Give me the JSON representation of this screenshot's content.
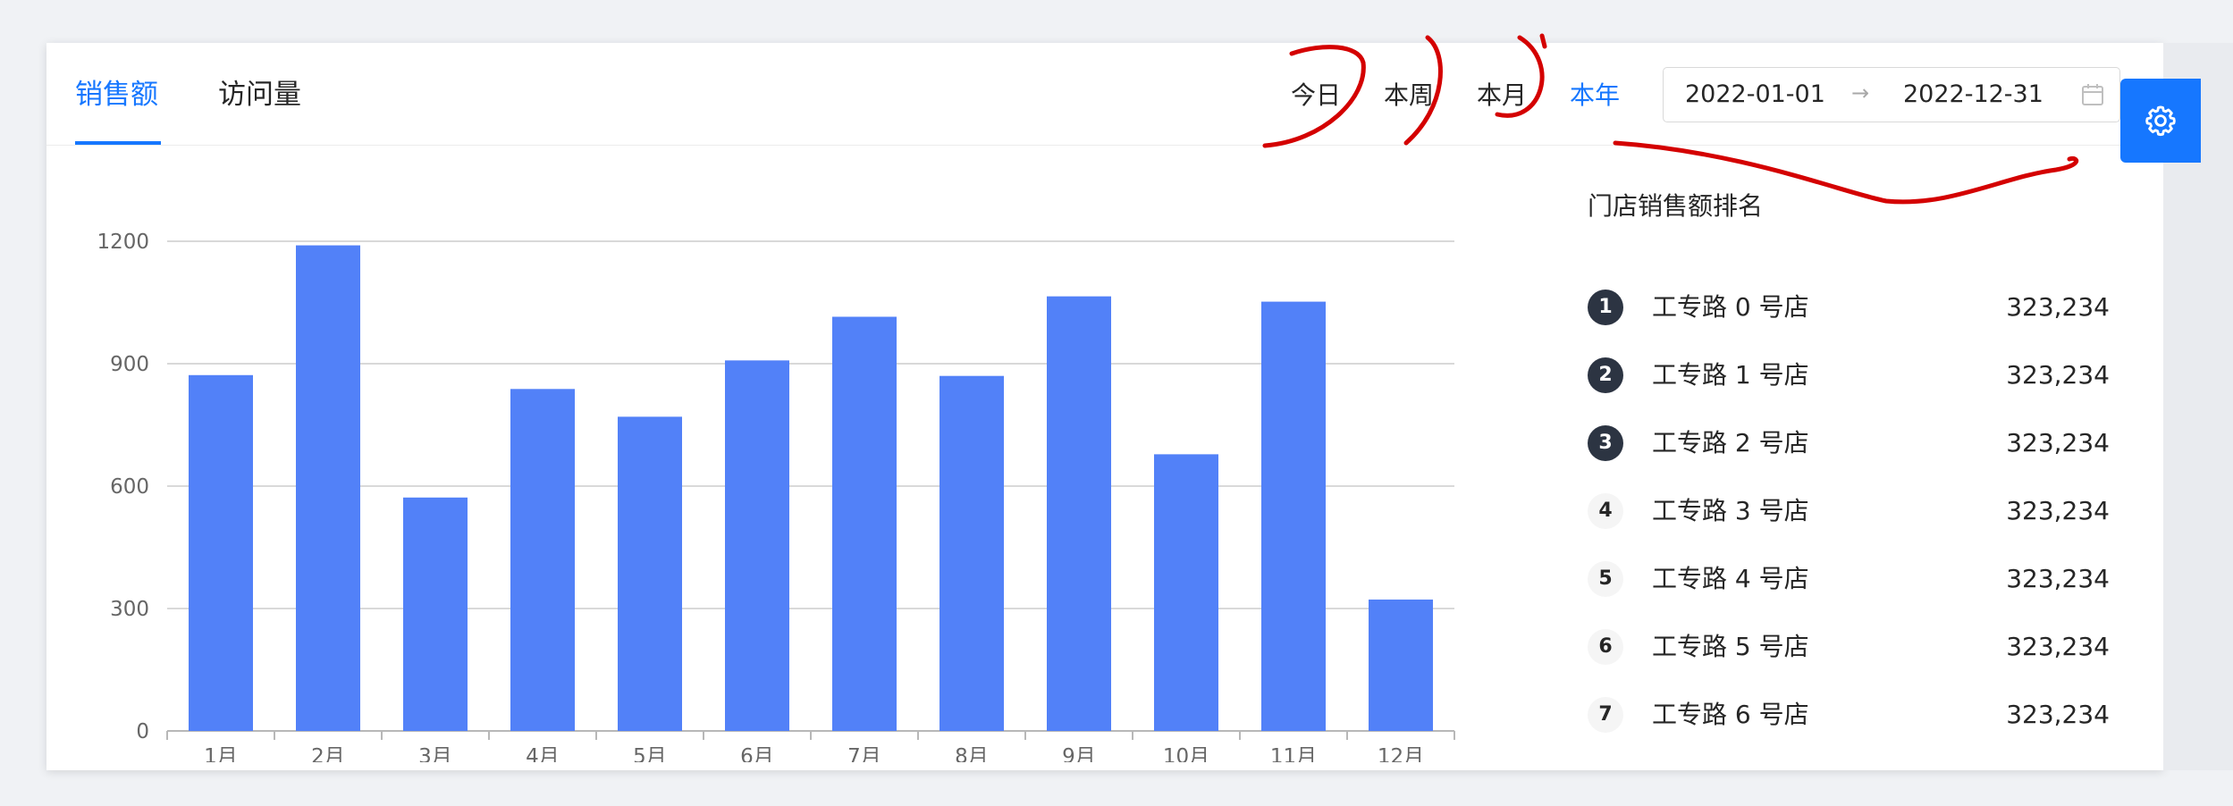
{
  "header": {
    "tabs": [
      {
        "label": "销售额",
        "active": true
      },
      {
        "label": "访问量",
        "active": false
      }
    ],
    "periods": [
      {
        "label": "今日",
        "active": false
      },
      {
        "label": "本周",
        "active": false
      },
      {
        "label": "本月",
        "active": false
      },
      {
        "label": "本年",
        "active": true
      }
    ],
    "date_range": {
      "start": "2022-01-01",
      "separator": "→",
      "end": "2022-12-31"
    }
  },
  "chart_data": {
    "type": "bar",
    "categories": [
      "1月",
      "2月",
      "3月",
      "4月",
      "5月",
      "6月",
      "7月",
      "8月",
      "9月",
      "10月",
      "11月",
      "12月"
    ],
    "values": [
      872,
      1190,
      572,
      838,
      770,
      908,
      1015,
      870,
      1065,
      678,
      1052,
      322
    ],
    "ylim": [
      0,
      1200
    ],
    "yticks": [
      0,
      300,
      600,
      900,
      1200
    ],
    "grid": true,
    "color": "#5281f8"
  },
  "ranking": {
    "title": "门店销售额排名",
    "items": [
      {
        "rank": "1",
        "name": "工专路 0 号店",
        "value": "323,234"
      },
      {
        "rank": "2",
        "name": "工专路 1 号店",
        "value": "323,234"
      },
      {
        "rank": "3",
        "name": "工专路 2 号店",
        "value": "323,234"
      },
      {
        "rank": "4",
        "name": "工专路 3 号店",
        "value": "323,234"
      },
      {
        "rank": "5",
        "name": "工专路 4 号店",
        "value": "323,234"
      },
      {
        "rank": "6",
        "name": "工专路 5 号店",
        "value": "323,234"
      },
      {
        "rank": "7",
        "name": "工专路 6 号店",
        "value": "323,234"
      }
    ]
  },
  "icons": {
    "settings": "gear-icon",
    "calendar": "calendar-icon"
  },
  "colors": {
    "accent": "#1677ff",
    "bar": "#5281f8",
    "annotation": "#d40000",
    "badge_dark": "#2c3442"
  }
}
